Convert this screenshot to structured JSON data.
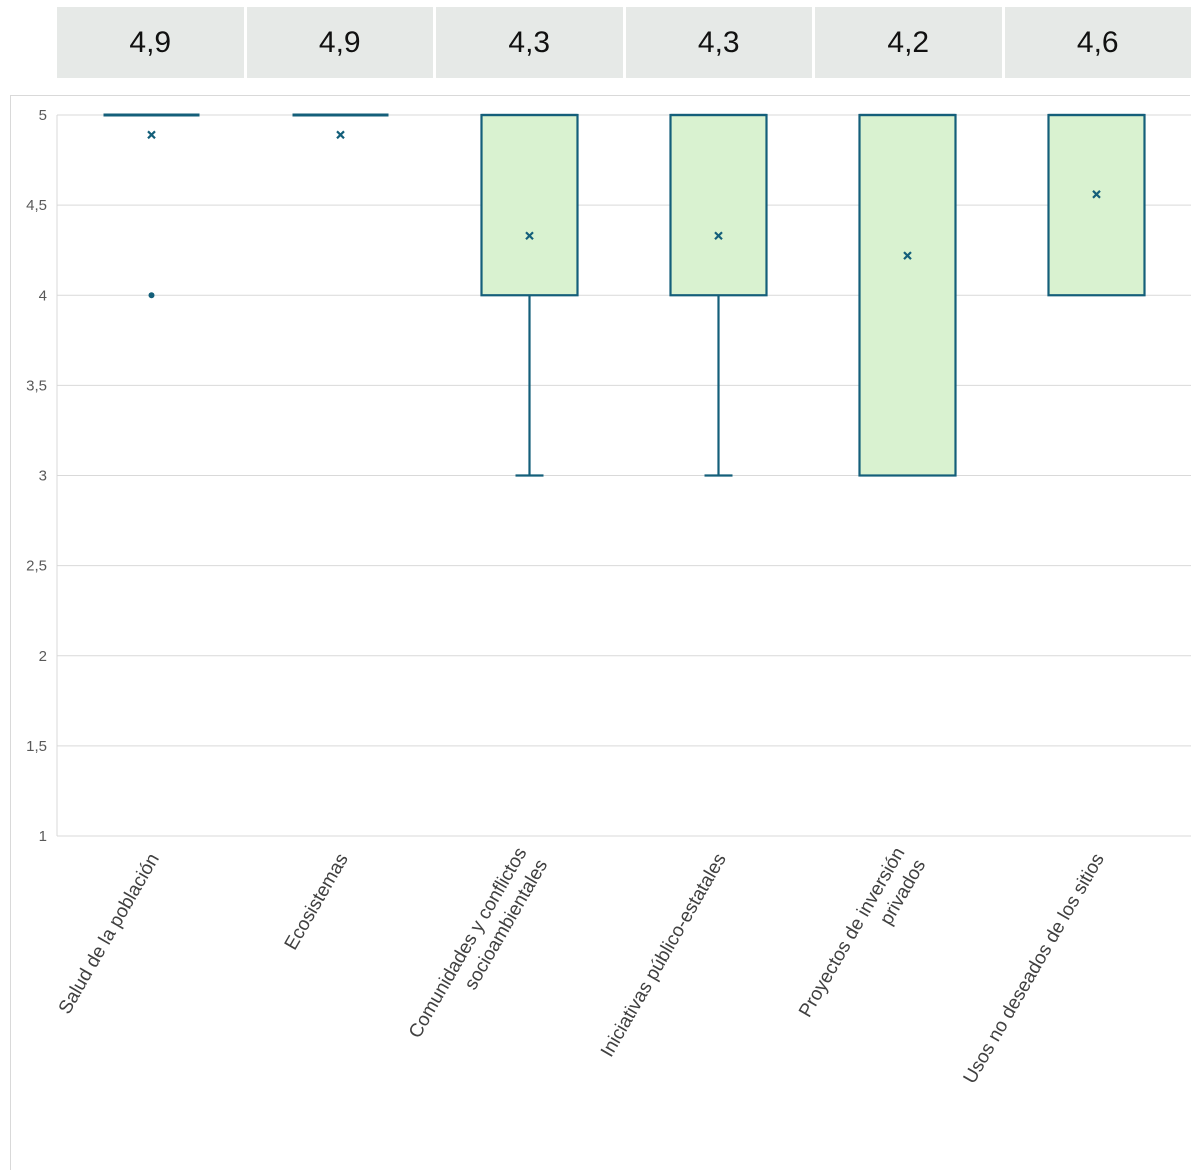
{
  "mean_row": [
    "4,9",
    "4,9",
    "4,3",
    "4,3",
    "4,2",
    "4,6"
  ],
  "chart_data": {
    "type": "box",
    "ylim": [
      1,
      5
    ],
    "yticks": [
      "1",
      "1,5",
      "2",
      "2,5",
      "3",
      "3,5",
      "4",
      "4,5",
      "5"
    ],
    "categories": [
      [
        "Salud de la población"
      ],
      [
        "Ecosistemas"
      ],
      [
        "Comunidades y conflictos",
        "socioambientales"
      ],
      [
        "Iniciativas público-estatales"
      ],
      [
        "Proyectos de inversión",
        "privados"
      ],
      [
        "Usos no deseados de los sitios"
      ]
    ],
    "boxes": [
      {
        "min": 5,
        "q1": 5,
        "median": 5,
        "q3": 5,
        "max": 5,
        "mean": 4.89,
        "outliers": [
          4
        ]
      },
      {
        "min": 5,
        "q1": 5,
        "median": 5,
        "q3": 5,
        "max": 5,
        "mean": 4.89,
        "outliers": []
      },
      {
        "min": 3,
        "q1": 4,
        "median": 5,
        "q3": 5,
        "max": 5,
        "mean": 4.33,
        "outliers": []
      },
      {
        "min": 3,
        "q1": 4,
        "median": 5,
        "q3": 5,
        "max": 5,
        "mean": 4.33,
        "outliers": []
      },
      {
        "min": 3,
        "q1": 3,
        "median": 5,
        "q3": 5,
        "max": 5,
        "mean": 4.22,
        "outliers": []
      },
      {
        "min": 4,
        "q1": 4,
        "median": 5,
        "q3": 5,
        "max": 5,
        "mean": 4.56,
        "outliers": []
      }
    ],
    "colors": {
      "box_fill": "#d9f2d0",
      "box_stroke": "#145f7a",
      "grid": "#d9d9d9"
    }
  }
}
